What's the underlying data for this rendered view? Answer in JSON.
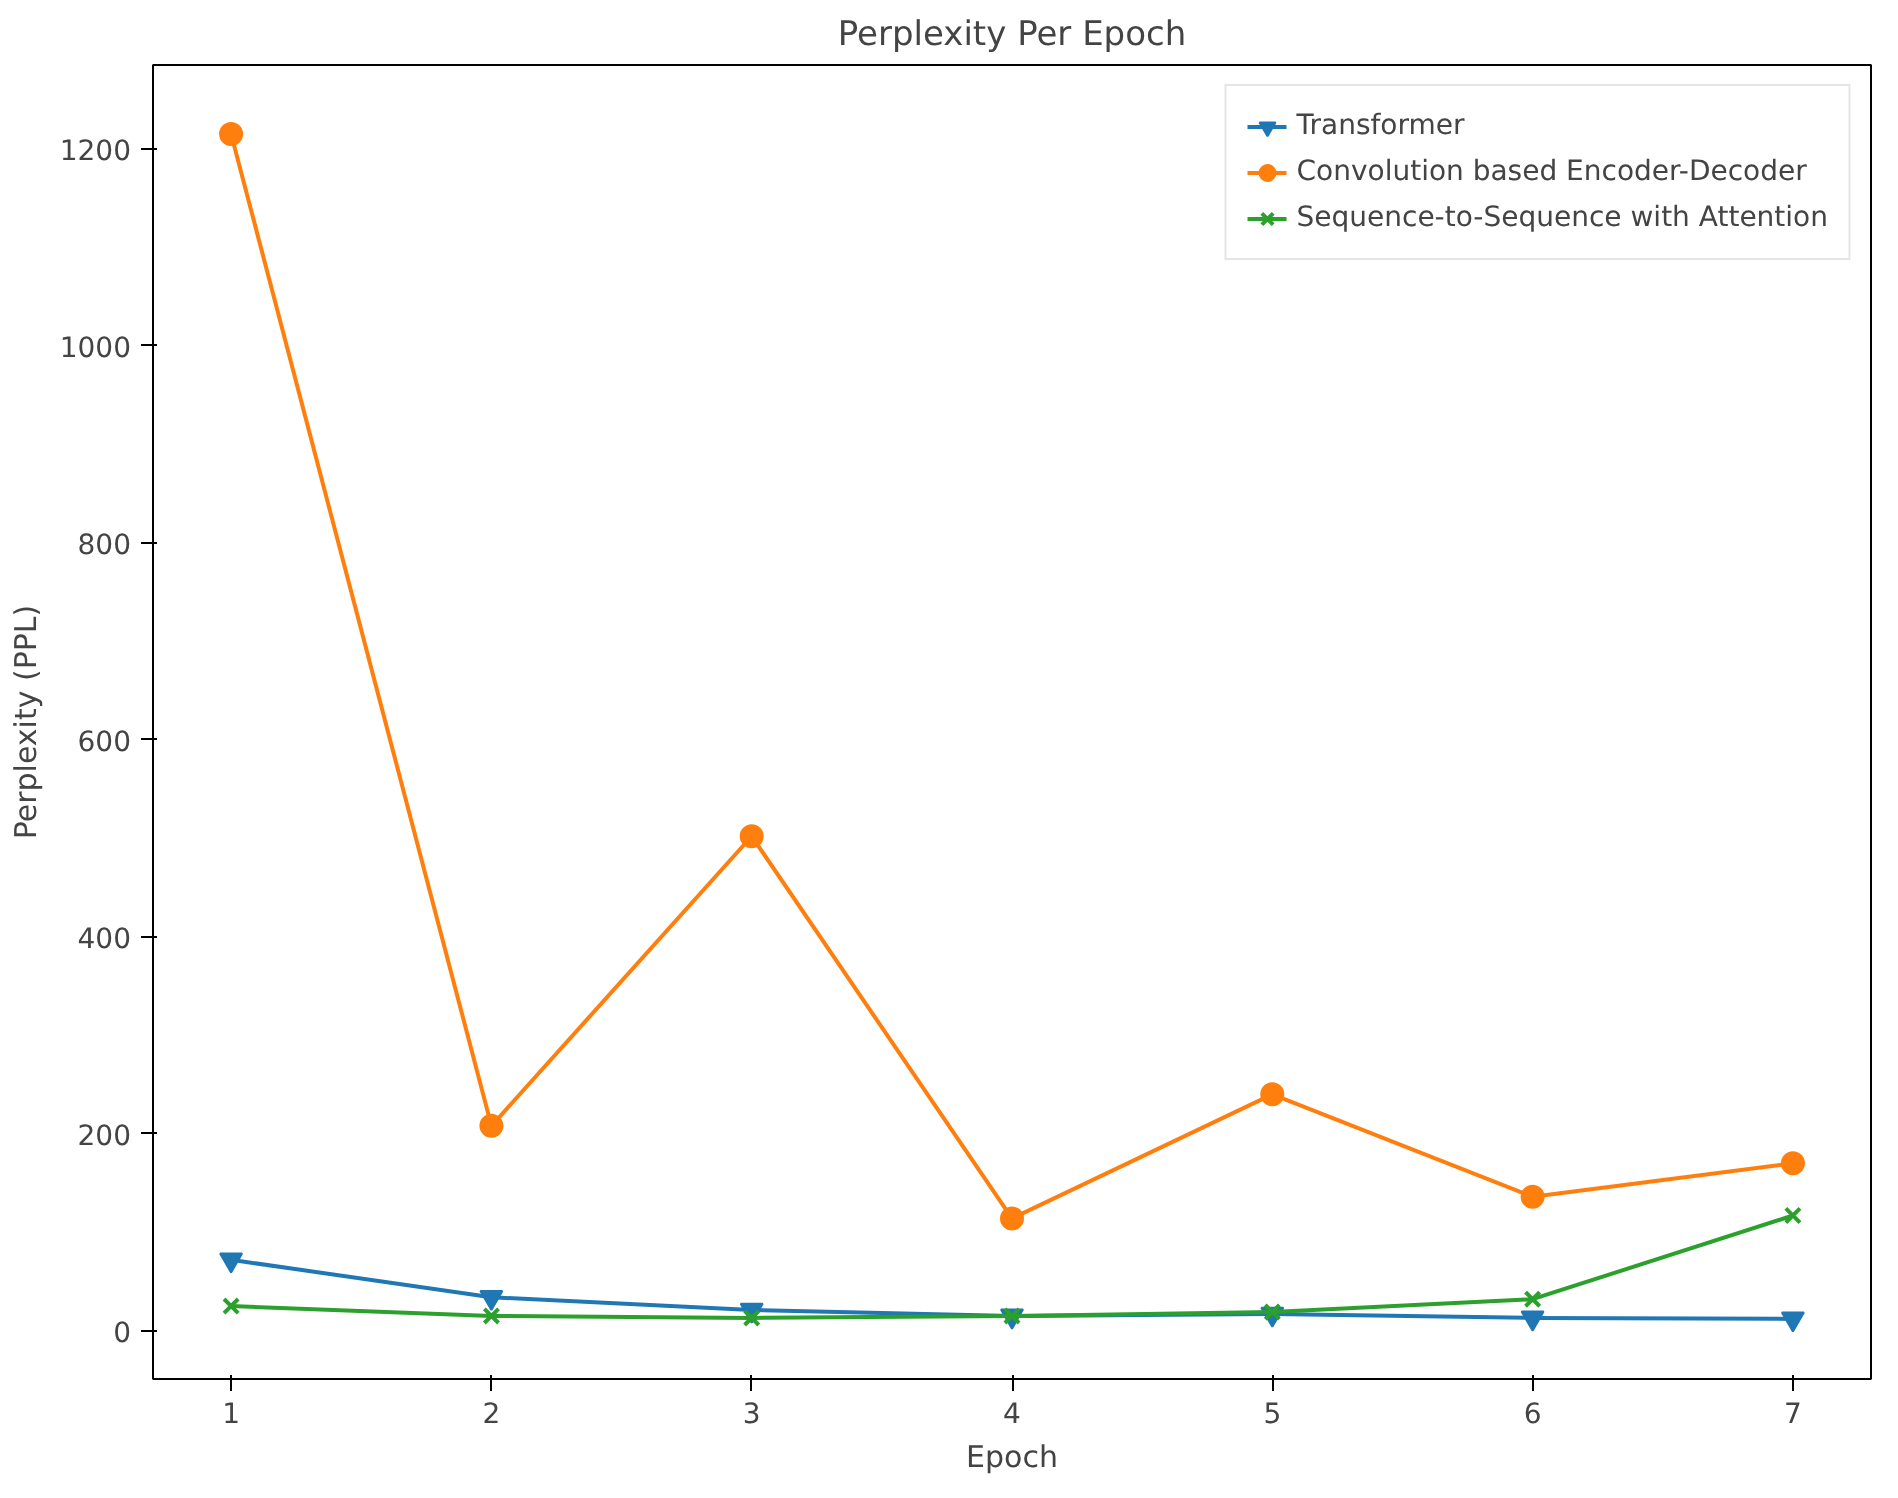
{
  "chart_data": {
    "type": "line",
    "title": "Perplexity Per Epoch",
    "xlabel": "Epoch",
    "ylabel": "Perplexity (PPL)",
    "x": [
      1,
      2,
      3,
      4,
      5,
      6,
      7
    ],
    "series": [
      {
        "name": "Transformer",
        "color": "#1f77b4",
        "marker": "triangle",
        "values": [
          72,
          34,
          21,
          15,
          17,
          13,
          12
        ]
      },
      {
        "name": "Convolution based Encoder-Decoder",
        "color": "#ff7f0e",
        "marker": "circle",
        "values": [
          1215,
          208,
          502,
          114,
          240,
          136,
          170
        ]
      },
      {
        "name": "Sequence-to-Sequence with Attention",
        "color": "#2ca02c",
        "marker": "cross",
        "values": [
          25,
          15,
          13,
          15,
          19,
          32,
          117
        ]
      }
    ],
    "xlim": [
      0.7,
      7.3
    ],
    "ylim": [
      -49,
      1285
    ],
    "xticks": [
      1,
      2,
      3,
      4,
      5,
      6,
      7
    ],
    "yticks": [
      0,
      200,
      400,
      600,
      800,
      1000,
      1200
    ],
    "grid": false,
    "legend": "top right",
    "line_style": "solid"
  }
}
